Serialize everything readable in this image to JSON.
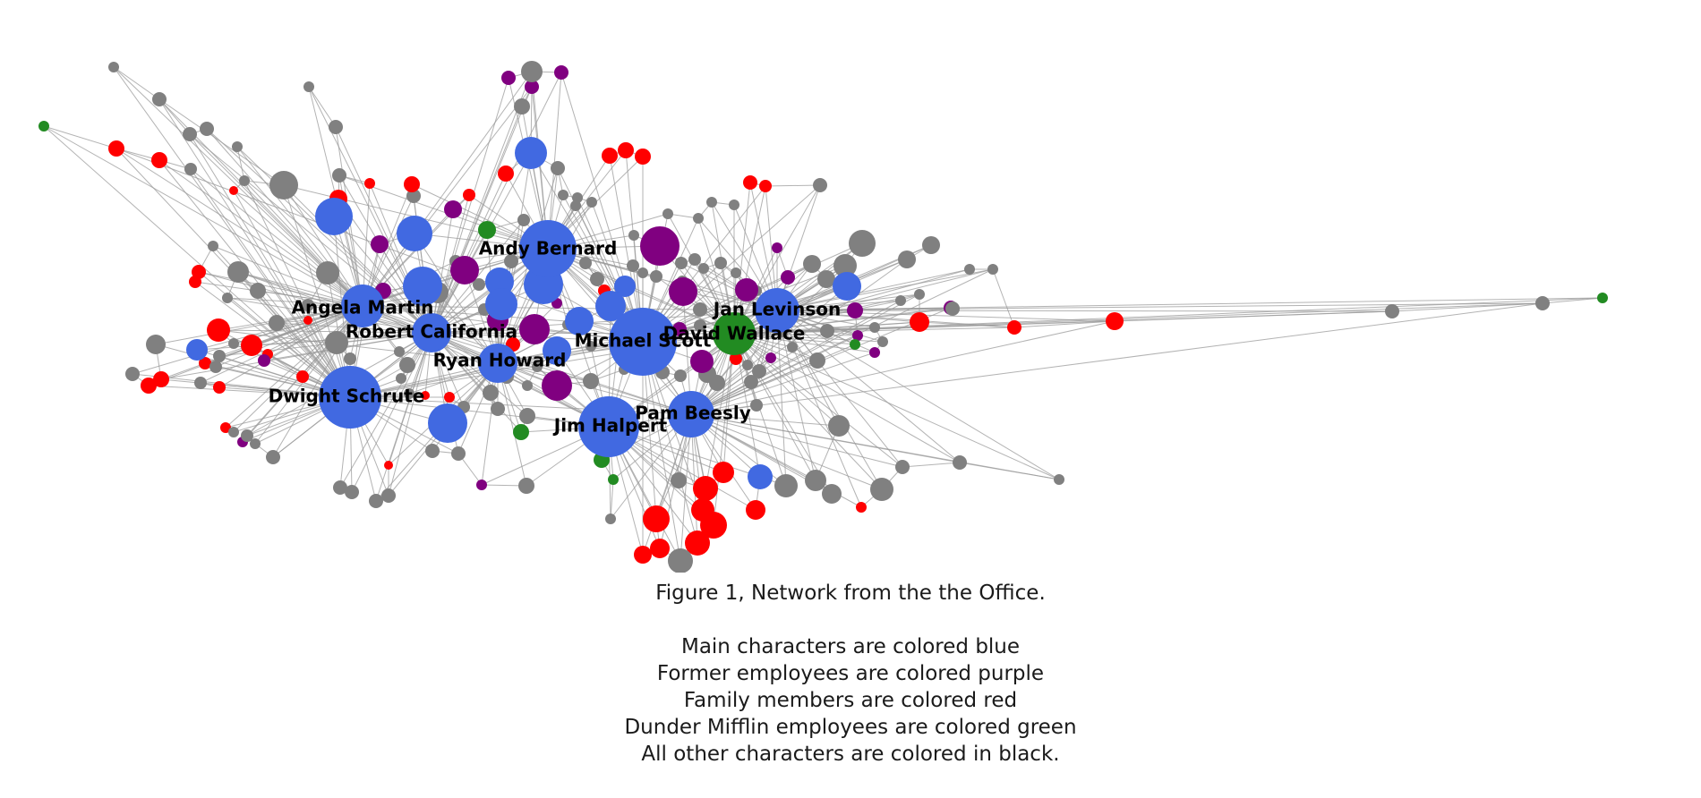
{
  "caption": {
    "title": "Figure 1, Network from the the Office.",
    "legend_lines": [
      "Main characters are colored blue",
      "Former employees are colored purple",
      "Family members are colored red",
      "Dunder Mifflin employees are colored green",
      "All other characters are colored in black."
    ]
  },
  "colors": {
    "main_character": "#4169e1",
    "former_employee": "#800080",
    "family_member": "#ff0000",
    "dunder_mifflin_employee": "#228b22",
    "other": "#808080",
    "edge": "#9a9a9a"
  },
  "labeled_nodes": [
    "Andy Bernard",
    "Angela Martin",
    "Robert California",
    "Michael Scott",
    "David Wallace",
    "Jan Levinson",
    "Ryan Howard",
    "Dwight Schrute",
    "Pam Beesly",
    "Jim Halpert"
  ]
}
